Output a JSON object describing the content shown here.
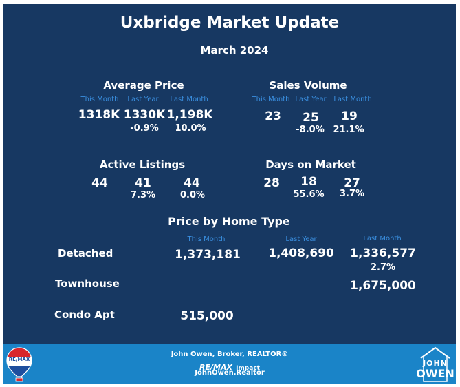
{
  "title": "Uxbridge Market Update",
  "subtitle": "March 2024",
  "average_price": {
    "heading": "Average Price",
    "headers": [
      "This Month",
      "Last Year",
      "Last Month"
    ],
    "values": [
      "1318K",
      "1330K",
      "1,198K"
    ],
    "changes": [
      "-0.9%",
      "10.0%"
    ]
  },
  "sales_volume": {
    "heading": "Sales Volume",
    "headers": [
      "This Month",
      "Last Year",
      "Last Month"
    ],
    "values": [
      "23",
      "25",
      "19"
    ],
    "changes": [
      "-8.0%",
      "21.1%"
    ]
  },
  "active_listings": {
    "heading": "Active Listings",
    "values": [
      "44",
      "41",
      "44"
    ],
    "changes": [
      "7.3%",
      "0.0%"
    ]
  },
  "days_on_market": {
    "heading": "Days on Market",
    "values": [
      "28",
      "18",
      "27"
    ],
    "changes": [
      "55.6%",
      "3.7%"
    ]
  },
  "price_by_type": {
    "heading": "Price by Home Type",
    "headers": [
      "This Month",
      "Last Year",
      "Last Month"
    ],
    "rows": [
      {
        "label": "Detached",
        "this_month": "1,373,181",
        "last_year": "1,408,690",
        "last_month": "1,336,577",
        "change": "2.7%"
      },
      {
        "label": "Townhouse",
        "this_month": "",
        "last_year": "",
        "last_month": "1,675,000",
        "change": ""
      },
      {
        "label": "Condo Apt",
        "this_month": "515,000",
        "last_year": "",
        "last_month": "",
        "change": ""
      }
    ]
  },
  "footer": {
    "line1": "John Owen, Broker, REALTOR®",
    "brand": "RE/MAX",
    "brand_suffix": "Impact",
    "line3": "JohnOwen.Realtor",
    "left_logo_text": "RE/MAX",
    "right_logo_line1": "JOHN",
    "right_logo_line2": "OWEN"
  },
  "colors": {
    "panel": "#173862",
    "footer": "#1a84c8",
    "header_text": "#3a8fe0"
  }
}
